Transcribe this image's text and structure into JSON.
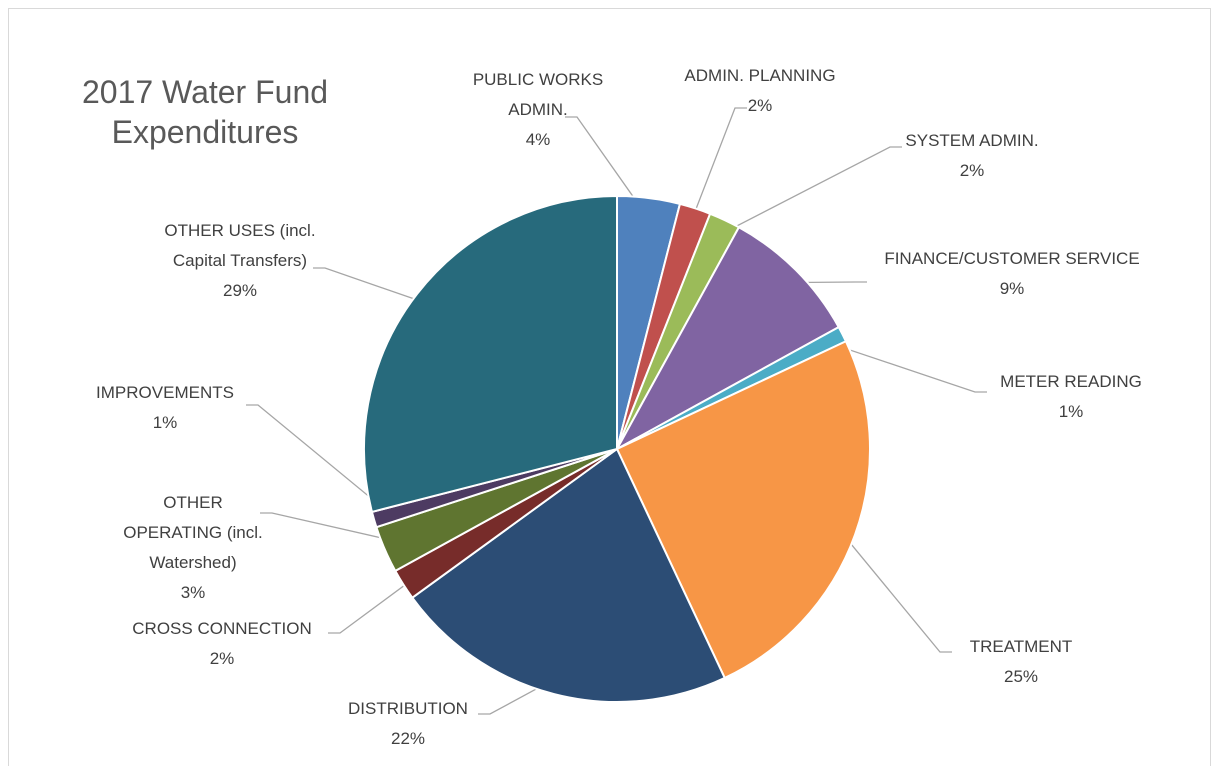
{
  "chart_data": {
    "type": "pie",
    "title": "2017 Water Fund Expenditures",
    "categories": [
      "PUBLIC WORKS ADMIN.",
      "ADMIN. PLANNING",
      "SYSTEM ADMIN.",
      "FINANCE/CUSTOMER SERVICE",
      "METER READING",
      "TREATMENT",
      "DISTRIBUTION",
      "CROSS CONNECTION",
      "OTHER OPERATING (incl. Watershed)",
      "IMPROVEMENTS",
      "OTHER USES (incl. Capital Transfers)"
    ],
    "values": [
      4,
      2,
      2,
      9,
      1,
      25,
      22,
      2,
      3,
      1,
      29
    ],
    "value_labels": [
      "4%",
      "2%",
      "2%",
      "9%",
      "1%",
      "25%",
      "22%",
      "2%",
      "3%",
      "1%",
      "29%"
    ],
    "colors": [
      "#4f81bd",
      "#c0504d",
      "#9bbb59",
      "#8064a2",
      "#4bacc6",
      "#f79646",
      "#2c4d75",
      "#772c2a",
      "#5f7530",
      "#4d3b62",
      "#276a7c"
    ]
  }
}
